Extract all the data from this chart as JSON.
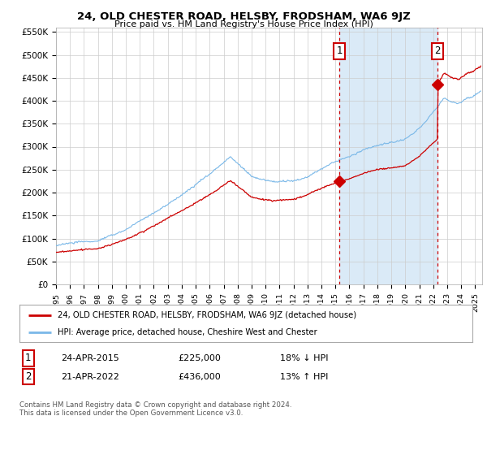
{
  "title": "24, OLD CHESTER ROAD, HELSBY, FRODSHAM, WA6 9JZ",
  "subtitle": "Price paid vs. HM Land Registry's House Price Index (HPI)",
  "ylim": [
    0,
    560000
  ],
  "yticks": [
    0,
    50000,
    100000,
    150000,
    200000,
    250000,
    300000,
    350000,
    400000,
    450000,
    500000,
    550000
  ],
  "ytick_labels": [
    "£0",
    "£50K",
    "£100K",
    "£150K",
    "£200K",
    "£250K",
    "£300K",
    "£350K",
    "£400K",
    "£450K",
    "£500K",
    "£550K"
  ],
  "xlim_start": 1995.0,
  "xlim_end": 2025.5,
  "hpi_color": "#7ab8e8",
  "hpi_fill_color": "#daeaf7",
  "price_color": "#cc0000",
  "marker1_x": 2015.3,
  "marker1_y": 225000,
  "marker2_x": 2022.3,
  "marker2_y": 436000,
  "legend_line1": "24, OLD CHESTER ROAD, HELSBY, FRODSHAM, WA6 9JZ (detached house)",
  "legend_line2": "HPI: Average price, detached house, Cheshire West and Chester",
  "table_row1_num": "1",
  "table_row1_date": "24-APR-2015",
  "table_row1_price": "£225,000",
  "table_row1_hpi": "18% ↓ HPI",
  "table_row2_num": "2",
  "table_row2_date": "21-APR-2022",
  "table_row2_price": "£436,000",
  "table_row2_hpi": "13% ↑ HPI",
  "footnote": "Contains HM Land Registry data © Crown copyright and database right 2024.\nThis data is licensed under the Open Government Licence v3.0.",
  "background_color": "#ffffff",
  "grid_color": "#cccccc"
}
